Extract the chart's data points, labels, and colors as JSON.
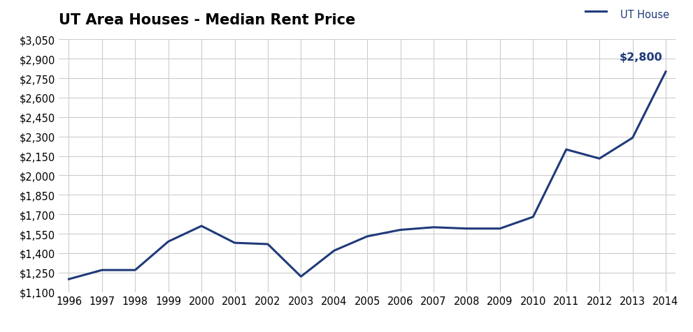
{
  "title": "UT Area Houses - Median Rent Price",
  "years": [
    1996,
    1997,
    1998,
    1999,
    2000,
    2001,
    2002,
    2003,
    2004,
    2005,
    2006,
    2007,
    2008,
    2009,
    2010,
    2011,
    2012,
    2013,
    2014
  ],
  "values": [
    1200,
    1270,
    1270,
    1490,
    1610,
    1480,
    1470,
    1220,
    1420,
    1530,
    1580,
    1600,
    1590,
    1590,
    1680,
    2200,
    2130,
    2290,
    2800
  ],
  "line_color": "#1F3A7A",
  "line_width": 2.2,
  "annotation_text": "$2,800",
  "annotation_color": "#1F3A7A",
  "legend_label": "UT House",
  "ylim_min": 1100,
  "ylim_max": 3050,
  "ytick_step": 150,
  "background_color": "#FFFFFF",
  "grid_color": "#CCCCCC",
  "title_fontsize": 15,
  "tick_fontsize": 10.5
}
